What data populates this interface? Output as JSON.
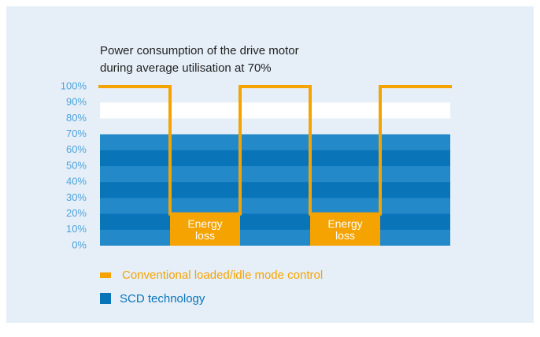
{
  "chart_data": {
    "type": "step",
    "title": "Power consumption of the drive motor during average utilisation at 70%",
    "ylim": [
      0,
      100
    ],
    "yticks": [
      {
        "value": 0,
        "label": "0%"
      },
      {
        "value": 10,
        "label": "10%"
      },
      {
        "value": 20,
        "label": "20%"
      },
      {
        "value": 30,
        "label": "30%"
      },
      {
        "value": 40,
        "label": "40%"
      },
      {
        "value": 50,
        "label": "50%"
      },
      {
        "value": 60,
        "label": "60%"
      },
      {
        "value": 70,
        "label": "70%"
      },
      {
        "value": 80,
        "label": "80%"
      },
      {
        "value": 90,
        "label": "90%"
      },
      {
        "value": 100,
        "label": "100%"
      }
    ],
    "series": [
      {
        "name": "Conventional loaded/idle mode control",
        "color": "#f5a300",
        "values": [
          100,
          20,
          100,
          20,
          100
        ]
      },
      {
        "name": "SCD technology",
        "color": "#0a74b9",
        "values": [
          70,
          70,
          70,
          70,
          70
        ]
      }
    ],
    "annotations": [
      {
        "text": "Energy loss",
        "segment": 1
      },
      {
        "text": "Energy loss",
        "segment": 3
      }
    ]
  }
}
